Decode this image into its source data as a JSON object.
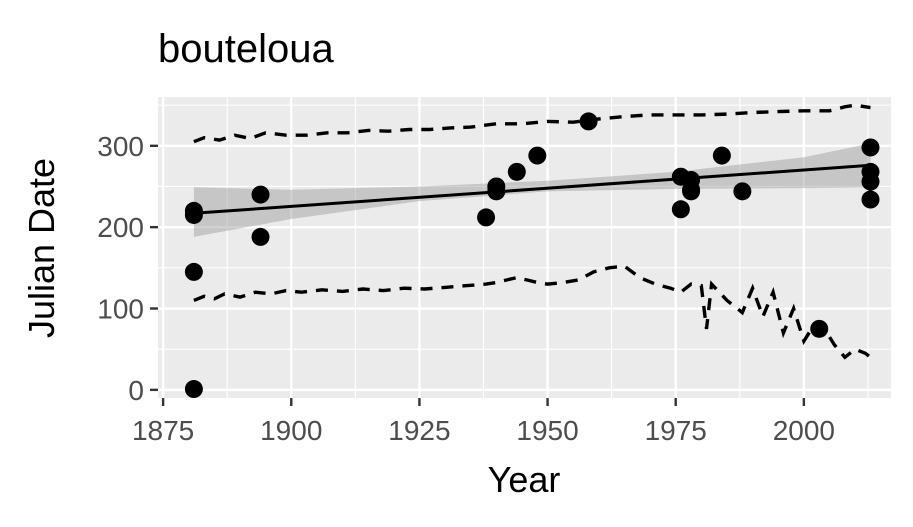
{
  "chart_data": {
    "type": "scatter",
    "title": "bouteloua",
    "xlabel": "Year",
    "ylabel": "Julian Date",
    "xlim": [
      1874,
      2017
    ],
    "ylim": [
      -10,
      360
    ],
    "x_ticks": [
      1875,
      1900,
      1925,
      1950,
      1975,
      2000
    ],
    "y_ticks": [
      0,
      100,
      200,
      300
    ],
    "grid": true,
    "legend": "none",
    "colors": {
      "panel": "#ebebeb",
      "grid": "#ffffff",
      "ink": "#000000",
      "band": "#999999"
    },
    "points": [
      {
        "x": 1881,
        "y": 220
      },
      {
        "x": 1881,
        "y": 215
      },
      {
        "x": 1881,
        "y": 145
      },
      {
        "x": 1881,
        "y": 1
      },
      {
        "x": 1894,
        "y": 240
      },
      {
        "x": 1894,
        "y": 188
      },
      {
        "x": 1938,
        "y": 212
      },
      {
        "x": 1940,
        "y": 250
      },
      {
        "x": 1940,
        "y": 244
      },
      {
        "x": 1944,
        "y": 268
      },
      {
        "x": 1948,
        "y": 288
      },
      {
        "x": 1958,
        "y": 330
      },
      {
        "x": 1976,
        "y": 262
      },
      {
        "x": 1976,
        "y": 222
      },
      {
        "x": 1978,
        "y": 258
      },
      {
        "x": 1978,
        "y": 246
      },
      {
        "x": 1978,
        "y": 244
      },
      {
        "x": 1984,
        "y": 288
      },
      {
        "x": 1988,
        "y": 244
      },
      {
        "x": 2003,
        "y": 75
      },
      {
        "x": 2013,
        "y": 298
      },
      {
        "x": 2013,
        "y": 268
      },
      {
        "x": 2013,
        "y": 256
      },
      {
        "x": 2013,
        "y": 234
      }
    ],
    "trend_line": {
      "x": [
        1881,
        2013
      ],
      "y": [
        217,
        276
      ]
    },
    "confidence_band": {
      "x": [
        1881,
        1900,
        1925,
        1950,
        1975,
        2000,
        2013
      ],
      "lower": [
        188,
        210,
        232,
        244,
        247,
        248,
        249
      ],
      "upper": [
        249,
        246,
        250,
        257,
        268,
        286,
        303
      ]
    },
    "upper_dashed": {
      "x": [
        1881,
        1883,
        1886,
        1889,
        1892,
        1895,
        1899,
        1903,
        1907,
        1911,
        1915,
        1919,
        1923,
        1927,
        1931,
        1935,
        1940,
        1945,
        1950,
        1955,
        1960,
        1965,
        1970,
        1975,
        1980,
        1985,
        1990,
        1995,
        2000,
        2005,
        2008,
        2010,
        2013
      ],
      "y": [
        305,
        310,
        307,
        313,
        309,
        316,
        313,
        313,
        316,
        316,
        319,
        318,
        320,
        320,
        322,
        323,
        327,
        327,
        330,
        329,
        333,
        336,
        338,
        338,
        338,
        339,
        341,
        342,
        343,
        343,
        348,
        350,
        347
      ]
    },
    "lower_dashed": {
      "x": [
        1881,
        1883,
        1885,
        1887,
        1890,
        1893,
        1896,
        1899,
        1902,
        1906,
        1910,
        1914,
        1918,
        1922,
        1926,
        1930,
        1934,
        1938,
        1940,
        1942,
        1944,
        1946,
        1948,
        1950,
        1953,
        1956,
        1959,
        1962,
        1965,
        1968,
        1971,
        1974,
        1976,
        1978,
        1980,
        1981,
        1982,
        1985,
        1988,
        1990,
        1992,
        1994,
        1996,
        1998,
        2000,
        2002,
        2004,
        2006,
        2008,
        2010,
        2012,
        2014
      ],
      "y": [
        110,
        115,
        112,
        118,
        114,
        120,
        118,
        122,
        120,
        123,
        121,
        124,
        122,
        125,
        124,
        126,
        128,
        130,
        132,
        135,
        138,
        135,
        132,
        130,
        132,
        135,
        145,
        150,
        152,
        138,
        130,
        125,
        120,
        130,
        128,
        75,
        130,
        110,
        95,
        125,
        90,
        120,
        70,
        100,
        60,
        80,
        75,
        55,
        40,
        50,
        45,
        35
      ]
    }
  }
}
